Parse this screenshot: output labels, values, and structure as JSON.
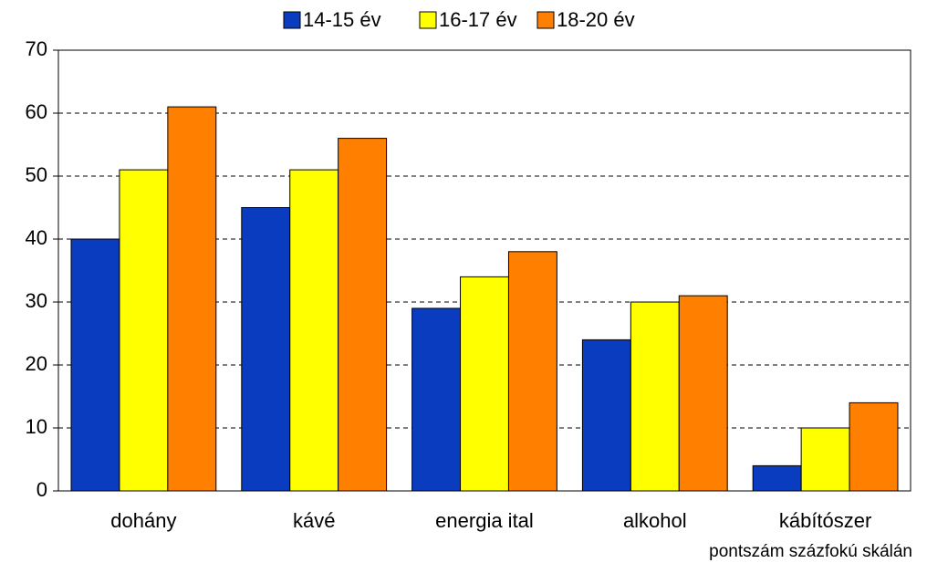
{
  "chart_data": {
    "type": "bar",
    "categories": [
      "dohány",
      "kávé",
      "energia ital",
      "alkohol",
      "kábítószer"
    ],
    "series": [
      {
        "name": "14-15 év",
        "color": "#0a3cc0",
        "values": [
          40,
          45,
          29,
          24,
          4
        ]
      },
      {
        "name": "16-17 év",
        "color": "#ffff00",
        "values": [
          51,
          51,
          34,
          30,
          10
        ]
      },
      {
        "name": "18-20 év",
        "color": "#ff8000",
        "values": [
          61,
          56,
          38,
          31,
          14
        ]
      }
    ],
    "ylim": [
      0,
      70
    ],
    "yticks": [
      0,
      10,
      20,
      30,
      40,
      50,
      60,
      70
    ],
    "grid": true,
    "legend": "top",
    "annotation": "pontszám százfokú skálán"
  }
}
